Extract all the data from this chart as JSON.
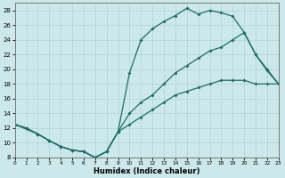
{
  "xlabel": "Humidex (Indice chaleur)",
  "bg_color": "#cce8ea",
  "grid_color": "#b0d4d8",
  "line_color": "#1a6e68",
  "xlim": [
    0,
    23
  ],
  "ylim": [
    8,
    29
  ],
  "xticks": [
    0,
    1,
    2,
    3,
    4,
    5,
    6,
    7,
    8,
    9,
    10,
    11,
    12,
    13,
    14,
    15,
    16,
    17,
    18,
    19,
    20,
    21,
    22,
    23
  ],
  "yticks": [
    8,
    10,
    12,
    14,
    16,
    18,
    20,
    22,
    24,
    26,
    28
  ],
  "line1_x": [
    0,
    1,
    2,
    3,
    4,
    5,
    6,
    7,
    8,
    9,
    10,
    11,
    12,
    13,
    14,
    15,
    16,
    17,
    18,
    19,
    20,
    21,
    22,
    23
  ],
  "line1_y": [
    12.5,
    12.0,
    11.2,
    10.3,
    9.5,
    9.0,
    8.8,
    8.0,
    8.8,
    11.5,
    19.5,
    24.0,
    25.5,
    26.5,
    27.3,
    28.3,
    27.5,
    28.0,
    27.7,
    27.2,
    25.0,
    22.0,
    19.8,
    18.0
  ],
  "line2_x": [
    0,
    2,
    3,
    4,
    5,
    6,
    7,
    8,
    9,
    10,
    11,
    12,
    13,
    14,
    15,
    16,
    17,
    18,
    19,
    20,
    21,
    22,
    23
  ],
  "line2_y": [
    12.5,
    11.2,
    10.3,
    9.5,
    9.0,
    8.8,
    8.0,
    8.8,
    11.5,
    14.0,
    15.5,
    16.5,
    18.0,
    19.5,
    20.5,
    21.5,
    22.5,
    23.0,
    24.0,
    25.0,
    22.0,
    20.0,
    18.0
  ],
  "line3_x": [
    0,
    1,
    2,
    3,
    4,
    5,
    6,
    7,
    8,
    9,
    10,
    11,
    12,
    13,
    14,
    15,
    16,
    17,
    18,
    19,
    20,
    21,
    22,
    23
  ],
  "line3_y": [
    12.5,
    12.0,
    11.2,
    10.3,
    9.5,
    9.0,
    8.8,
    8.0,
    8.8,
    11.5,
    12.5,
    13.5,
    14.5,
    15.5,
    16.5,
    17.0,
    17.5,
    18.0,
    18.5,
    18.5,
    18.5,
    18.0,
    18.0,
    18.0
  ]
}
